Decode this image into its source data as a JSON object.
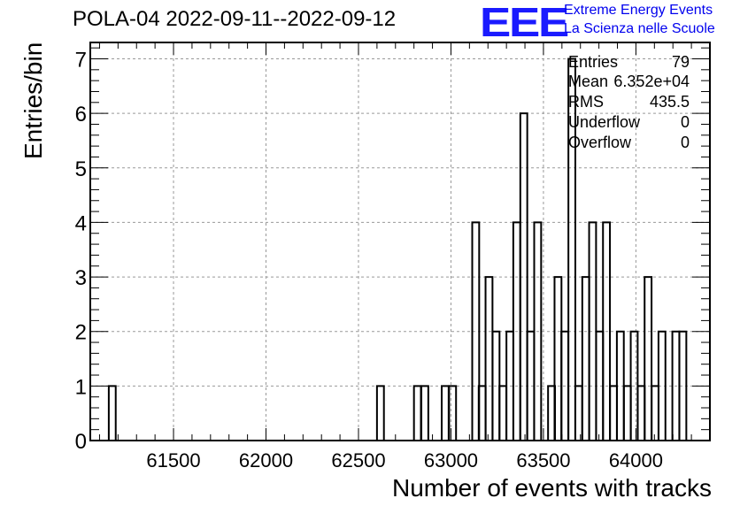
{
  "title": "POLA-04 2022-09-11--2022-09-12",
  "logo": {
    "mark": "EEE",
    "line1": "Extreme Energy Events",
    "line2": "La Scienza nelle Scuole",
    "color": "#1a1aff"
  },
  "stats": {
    "entries_label": "Entries",
    "entries_value": "79",
    "mean_label": "Mean",
    "mean_value": "6.352e+04",
    "rms_label": "RMS",
    "rms_value": "435.5",
    "underflow_label": "Underflow",
    "underflow_value": "0",
    "overflow_label": "Overflow",
    "overflow_value": "0"
  },
  "chart_data": {
    "type": "bar",
    "style": "step-histogram",
    "xlabel": "Number of events with tracks",
    "ylabel": "Entries/bin",
    "xlim": [
      61050,
      64400
    ],
    "ylim": [
      0,
      7.3
    ],
    "xticks": [
      61500,
      62000,
      62500,
      63000,
      63500,
      64000
    ],
    "yticks": [
      0,
      1,
      2,
      3,
      4,
      5,
      6,
      7
    ],
    "grid": true,
    "bin_width": 37.5,
    "bins": [
      {
        "x0": 61150,
        "y": 1
      },
      {
        "x0": 62600,
        "y": 1
      },
      {
        "x0": 62800,
        "y": 1
      },
      {
        "x0": 62840,
        "y": 1
      },
      {
        "x0": 62950,
        "y": 1
      },
      {
        "x0": 62990,
        "y": 1
      },
      {
        "x0": 63115,
        "y": 4
      },
      {
        "x0": 63150,
        "y": 1
      },
      {
        "x0": 63187,
        "y": 3
      },
      {
        "x0": 63225,
        "y": 2
      },
      {
        "x0": 63262,
        "y": 1
      },
      {
        "x0": 63300,
        "y": 2
      },
      {
        "x0": 63337,
        "y": 4
      },
      {
        "x0": 63375,
        "y": 6
      },
      {
        "x0": 63412,
        "y": 2
      },
      {
        "x0": 63450,
        "y": 4
      },
      {
        "x0": 63525,
        "y": 1
      },
      {
        "x0": 63560,
        "y": 3
      },
      {
        "x0": 63597,
        "y": 2
      },
      {
        "x0": 63635,
        "y": 7
      },
      {
        "x0": 63672,
        "y": 1
      },
      {
        "x0": 63710,
        "y": 3
      },
      {
        "x0": 63747,
        "y": 4
      },
      {
        "x0": 63785,
        "y": 2
      },
      {
        "x0": 63822,
        "y": 4
      },
      {
        "x0": 63860,
        "y": 1
      },
      {
        "x0": 63897,
        "y": 2
      },
      {
        "x0": 63935,
        "y": 1
      },
      {
        "x0": 63972,
        "y": 2
      },
      {
        "x0": 64010,
        "y": 1
      },
      {
        "x0": 64047,
        "y": 3
      },
      {
        "x0": 64085,
        "y": 1
      },
      {
        "x0": 64122,
        "y": 2
      },
      {
        "x0": 64197,
        "y": 2
      },
      {
        "x0": 64235,
        "y": 2
      }
    ]
  }
}
